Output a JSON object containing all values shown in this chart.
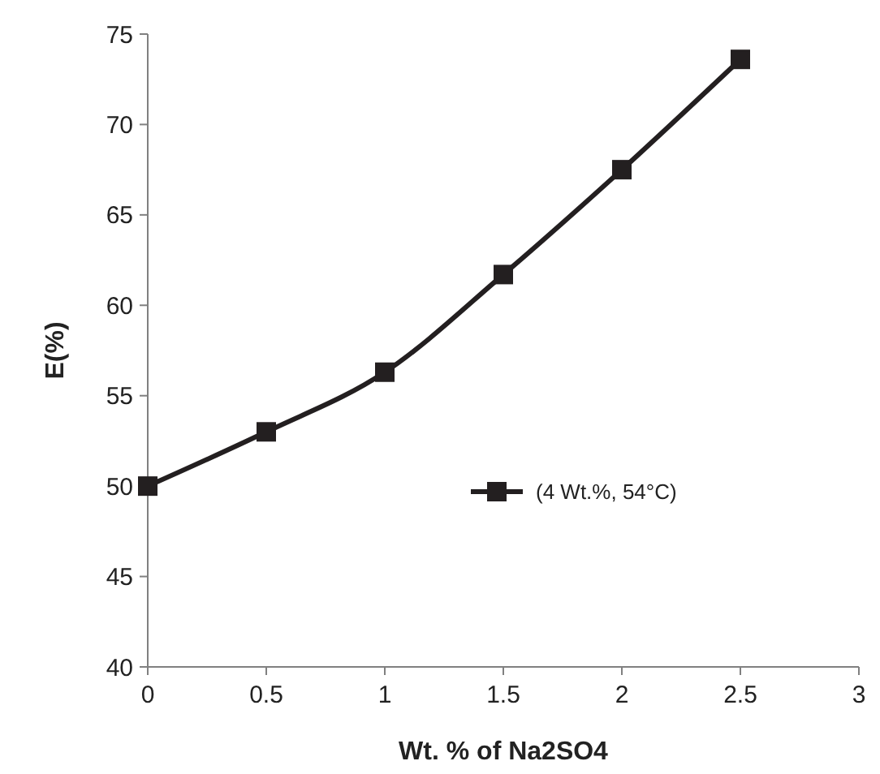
{
  "chart_data": {
    "type": "line",
    "xlabel": "Wt. % of Na2SO4",
    "ylabel": "E(%)",
    "x": [
      0,
      0.5,
      1,
      1.5,
      2,
      2.5
    ],
    "series": [
      {
        "name": "(4 Wt.%, 54°C)",
        "color": "#231f20",
        "values": [
          50,
          53,
          56.3,
          61.7,
          67.5,
          73.6
        ]
      }
    ],
    "xlim": [
      0,
      3
    ],
    "xticks": [
      0,
      0.5,
      1,
      1.5,
      2,
      2.5,
      3
    ],
    "ylim": [
      40,
      75
    ],
    "yticks": [
      40,
      45,
      50,
      55,
      60,
      65,
      70,
      75
    ],
    "grid": false,
    "legend": "right",
    "marker": "square",
    "line_style": "solid"
  }
}
